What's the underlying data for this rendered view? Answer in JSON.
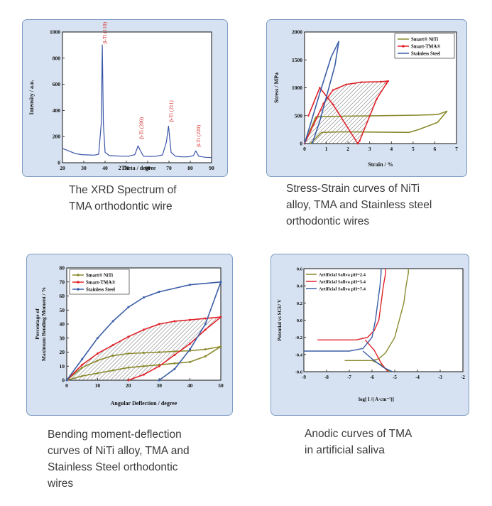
{
  "captions": {
    "xrd": [
      "The XRD Spectrum of",
      "TMA orthodontic wire"
    ],
    "stress": [
      "Stress-Strain curves of NiTi",
      "alloy, TMA and Stainless steel",
      "orthodontic wires"
    ],
    "bending": [
      "Bending moment-deflection",
      "curves of NiTi alloy, TMA and",
      "Stainless Steel orthodontic",
      "wires"
    ],
    "anodic": [
      "Anodic curves of TMA",
      "in artificial saliva"
    ]
  },
  "colors": {
    "panel_bg": "#d6e2f1",
    "panel_border": "#7e9cc4",
    "niti": "#8b8a2e",
    "tma": "#e0222a",
    "steel": "#3b5ea8",
    "xrd_line": "#3a55a8",
    "xrd_peak_label": "#d42020"
  },
  "chart_data": [
    {
      "type": "line",
      "xlabel": "2Theta / degree",
      "ylabel": "Intensity / a.u.",
      "xlim": [
        20,
        90
      ],
      "ylim": [
        0,
        1000
      ],
      "xticks": [
        "20",
        "30",
        "40",
        "50",
        "60",
        "70",
        "80",
        "90"
      ],
      "yticks": [
        "0",
        "200",
        "400",
        "600",
        "800",
        "1000"
      ],
      "series": [
        {
          "x": [
            20,
            23,
            26,
            29,
            32,
            35,
            37,
            38.2,
            38.7,
            39.2,
            40,
            42,
            45,
            48,
            51,
            54,
            55.5,
            56.5,
            58,
            61,
            64,
            67,
            68.8,
            69.8,
            71,
            73,
            76,
            79,
            81.5,
            82.6,
            84,
            87,
            90
          ],
          "y": [
            110,
            90,
            70,
            62,
            60,
            58,
            65,
            300,
            900,
            300,
            80,
            55,
            52,
            50,
            50,
            62,
            130,
            95,
            50,
            48,
            50,
            60,
            160,
            280,
            80,
            50,
            45,
            45,
            55,
            90,
            50,
            42,
            40
          ]
        }
      ],
      "annotations": [
        "β-Ti (110)",
        "β-Ti (200)",
        "β-Ti (211)",
        "β-Ti (220)"
      ],
      "annotation_x": [
        38.7,
        55.8,
        69.8,
        82.6
      ]
    },
    {
      "type": "line",
      "xlabel": "Strain / %",
      "ylabel": "Stress / MPa",
      "xlim": [
        0,
        8
      ],
      "ylim": [
        0,
        2000
      ],
      "xticks": [
        "0",
        "1",
        "2",
        "3",
        "4",
        "5",
        "6",
        "7"
      ],
      "yticks": [
        "0",
        "500",
        "1000",
        "1500",
        "2000"
      ],
      "legend": "top-right",
      "series": [
        {
          "name": "Smart® NiTi",
          "x": [
            0,
            0.6,
            2.0,
            4.0,
            6.0,
            7.0,
            7.5,
            7.0,
            6.0,
            5.5,
            4.0,
            2.0,
            0.9,
            0.3
          ],
          "y": [
            0,
            480,
            490,
            500,
            510,
            520,
            580,
            380,
            250,
            200,
            205,
            210,
            200,
            0
          ]
        },
        {
          "name": "Smart-TMA®",
          "x": [
            0,
            1.0,
            1.5,
            2.2,
            3.0,
            4.0,
            4.4,
            4.3,
            3.8,
            2.9,
            2.8,
            1.5,
            0.8,
            0.2
          ],
          "y": [
            0,
            720,
            960,
            1060,
            1100,
            1110,
            1120,
            1070,
            800,
            50,
            0,
            700,
            1000,
            500
          ]
        },
        {
          "name": "Stainless Steel",
          "x": [
            0,
            0.8,
            1.4,
            1.8,
            1.6,
            1.2,
            0.8,
            0.4
          ],
          "y": [
            0,
            900,
            1550,
            1830,
            1400,
            900,
            400,
            0
          ]
        }
      ]
    },
    {
      "type": "line",
      "xlabel": "Angular Deflection / degree",
      "ylabel": "Percentage of Maximum Bending Moment / %",
      "xlim": [
        0,
        50
      ],
      "ylim": [
        0,
        80
      ],
      "xticks": [
        "0",
        "10",
        "20",
        "30",
        "40",
        "50"
      ],
      "yticks": [
        "0",
        "10",
        "20",
        "30",
        "40",
        "50",
        "60",
        "70",
        "80"
      ],
      "legend": "top-left",
      "series": [
        {
          "name": "Smart® NiTi",
          "x": [
            0,
            5,
            10,
            15,
            20,
            25,
            30,
            35,
            40,
            45,
            50,
            45,
            40,
            35,
            30,
            25,
            20,
            15,
            10,
            5,
            0
          ],
          "y": [
            0,
            9,
            14,
            17.5,
            19,
            19.5,
            20,
            20.5,
            21,
            22,
            24,
            17,
            13,
            12,
            11,
            10,
            9,
            7,
            5,
            3,
            0
          ]
        },
        {
          "name": "Smart-TMA®",
          "x": [
            0,
            5,
            10,
            15,
            20,
            25,
            30,
            35,
            40,
            45,
            50,
            45,
            40,
            35,
            30,
            25,
            20
          ],
          "y": [
            0,
            11,
            19,
            25,
            31,
            36,
            40,
            42,
            43,
            44,
            45,
            36,
            26,
            18,
            10,
            4,
            0
          ]
        },
        {
          "name": "Stainless Steel",
          "x": [
            0,
            5,
            10,
            15,
            20,
            25,
            30,
            40,
            50,
            45,
            40,
            35,
            30
          ],
          "y": [
            0,
            15,
            30,
            42,
            52,
            59,
            63,
            68,
            70,
            40,
            22,
            8,
            0
          ]
        }
      ]
    },
    {
      "type": "line",
      "xlabel": "log[ I /( A·cm⁻²)]",
      "ylabel": "Potential vs SCE/ V",
      "xlim": [
        -9,
        -2
      ],
      "ylim": [
        -0.6,
        0.6
      ],
      "xticks": [
        "-9",
        "-8",
        "-7",
        "-6",
        "-5",
        "-4",
        "-3",
        "-2"
      ],
      "yticks": [
        "-0.6",
        "-0.4",
        "-0.2",
        "0.0",
        "0.2",
        "0.4",
        "0.6"
      ],
      "legend": "top-left",
      "series": [
        {
          "name": "Artificial Saliva pH=2.4",
          "x": [
            -7.2,
            -6.4,
            -6.0,
            -5.7,
            -5.4,
            -5.0,
            -4.8,
            -4.6,
            -4.5,
            -4.4,
            -4.4,
            -6.0,
            -5.6,
            -5.4,
            -5.2
          ],
          "y": [
            -0.47,
            -0.47,
            -0.47,
            -0.45,
            -0.38,
            -0.2,
            0.0,
            0.2,
            0.4,
            0.55,
            0.6,
            -0.47,
            -0.52,
            -0.57,
            -0.6
          ]
        },
        {
          "name": "Artificial Saliva pH=5.4",
          "x": [
            -8.4,
            -7.5,
            -6.7,
            -6.2,
            -5.9,
            -5.7,
            -5.6,
            -5.5,
            -5.4,
            -5.4,
            -6.3,
            -5.9,
            -5.6,
            -5.3
          ],
          "y": [
            -0.23,
            -0.23,
            -0.23,
            -0.2,
            -0.12,
            0.0,
            0.2,
            0.4,
            0.55,
            0.6,
            -0.23,
            -0.35,
            -0.5,
            -0.6
          ]
        },
        {
          "name": "Artificial Saliva pH=7.4",
          "x": [
            -9.0,
            -8.0,
            -7.0,
            -6.4,
            -6.0,
            -5.85,
            -5.75,
            -5.65,
            -5.6,
            -5.6,
            -6.4,
            -6.0,
            -5.5,
            -5.1
          ],
          "y": [
            -0.36,
            -0.36,
            -0.36,
            -0.33,
            -0.2,
            0.0,
            0.2,
            0.4,
            0.55,
            0.6,
            -0.36,
            -0.45,
            -0.55,
            -0.6
          ]
        }
      ]
    }
  ]
}
